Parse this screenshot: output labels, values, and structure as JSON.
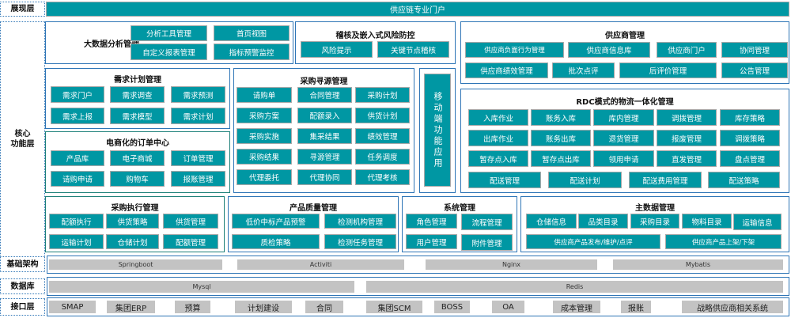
{
  "layers": {
    "presentation": "展现层",
    "core": "核心\n功能层",
    "infrastructure": "基础架构",
    "database": "数据库",
    "interface": "接口层"
  },
  "portal": "供应链专业门户",
  "modules": {
    "bigdata": {
      "title": "大数据分析管理",
      "items": [
        "分析工具管理",
        "首页视图",
        "自定义报表管理",
        "指标预警监控"
      ]
    },
    "audit": {
      "title": "稽核及嵌入式风险防控",
      "items": [
        "风险提示",
        "关键节点稽核"
      ]
    },
    "supplier": {
      "title": "供应商管理",
      "items": [
        "供应商负面行为管理",
        "供应商信息库",
        "供应商门户",
        "协同管理",
        "供应商绩效管理",
        "批次点评",
        "后评价管理",
        "公告管理"
      ]
    },
    "rdc": {
      "title": "RDC模式的物流一体化管理",
      "items": [
        "入库作业",
        "账务入库",
        "库内管理",
        "调拨管理",
        "库存策略",
        "出库作业",
        "账务出库",
        "退货管理",
        "报废管理",
        "调拨策略",
        "暂存点入库",
        "暂存点出库",
        "领用申请",
        "直发管理",
        "盘点管理",
        "配送管理",
        "配送计划",
        "配送费用管理",
        "配送策略"
      ]
    },
    "demand": {
      "title": "需求计划管理",
      "items": [
        "需求门户",
        "需求调查",
        "需求预测",
        "需求上报",
        "需求模型",
        "需求计划"
      ]
    },
    "ecommerce": {
      "title": "电商化的订单中心",
      "items": [
        "产品库",
        "电子商城",
        "订单管理",
        "请购申请",
        "购物车",
        "报账管理"
      ]
    },
    "sourcing": {
      "title": "采购寻源管理",
      "items": [
        "请购单",
        "合同管理",
        "采购计划",
        "采购方案",
        "配额录入",
        "供货计划",
        "采购实施",
        "集采结果",
        "绩效管理",
        "采购结果",
        "寻源管理",
        "任务调度",
        "代理委托",
        "代理协同",
        "代理考核"
      ]
    },
    "mobile": {
      "title": "移动端功能应用"
    },
    "execution": {
      "title": "采购执行管理",
      "items": [
        "配额执行",
        "供货策略",
        "供货管理",
        "运输计划",
        "仓储计划",
        "配额管理"
      ]
    },
    "quality": {
      "title": "产品质量管理",
      "items": [
        "低价中标产品预警",
        "检测机构管理",
        "质检策略",
        "检测任务管理"
      ]
    },
    "system": {
      "title": "系统管理",
      "items": [
        "角色管理",
        "流程管理",
        "用户管理",
        "附件管理"
      ]
    },
    "masterdata": {
      "title": "主数据管理",
      "items": [
        "仓储信息",
        "品类目录",
        "采购目录",
        "物料目录",
        "运输信息",
        "供应商产品发布/维护/点评",
        "供应商产品上架/下架"
      ]
    }
  },
  "infrastructure": [
    "Springboot",
    "Activiti",
    "Nginx",
    "Mybatis"
  ],
  "database": [
    "Mysql",
    "Redis"
  ],
  "interfaces": [
    "SMAP",
    "集团ERP",
    "预算",
    "计划建设",
    "合同",
    "集团SCM",
    "BOSS",
    "OA",
    "成本管理",
    "报账",
    "战略供应商相关系统"
  ],
  "colors": {
    "module_button": "#0097a3",
    "border": "#2e75b6",
    "grey_block": "#c3c3c3"
  }
}
